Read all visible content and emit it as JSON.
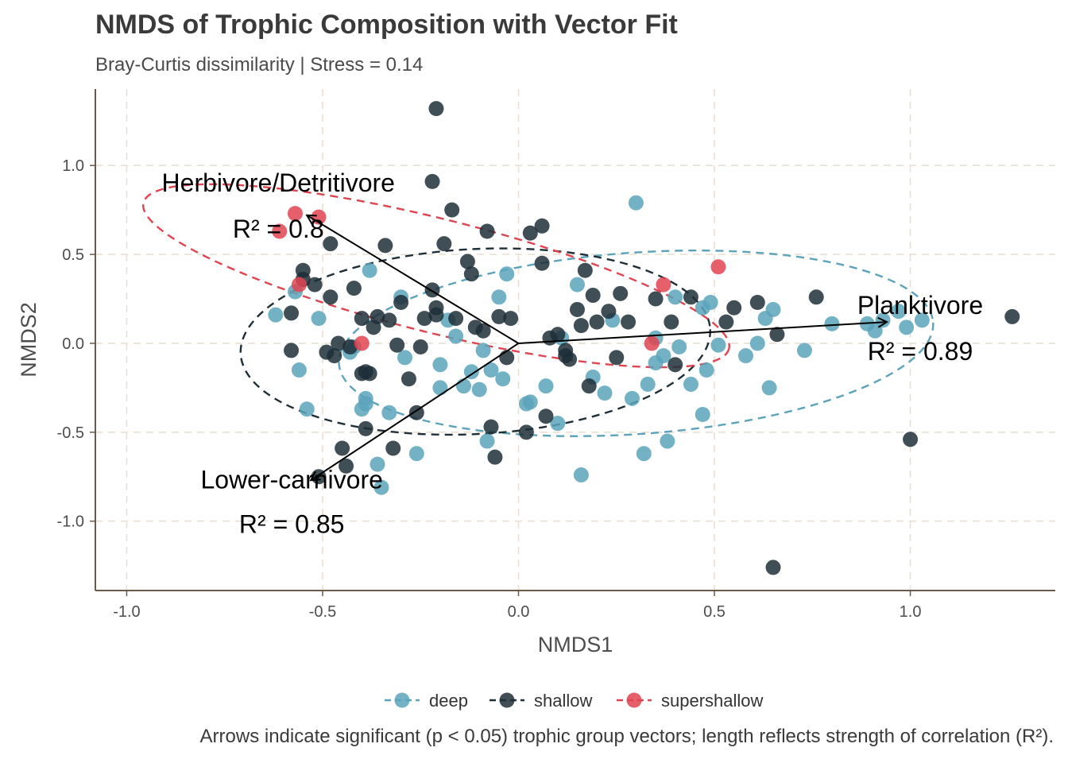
{
  "chart_data": {
    "type": "scatter",
    "title": "NMDS of Trophic Composition with Vector Fit",
    "subtitle": "Bray-Curtis dissimilarity | Stress = 0.14",
    "caption": "Arrows indicate significant (p < 0.05) trophic group vectors; length reflects strength of correlation (R²).",
    "xlabel": "NMDS1",
    "ylabel": "NMDS2",
    "xlim": [
      -1.08,
      1.37
    ],
    "ylim": [
      -1.39,
      1.43
    ],
    "xticks": [
      -1.0,
      -0.5,
      0.0,
      0.5,
      1.0
    ],
    "xtick_labels": [
      "-1.0",
      "-0.5",
      "0.0",
      "0.5",
      "1.0"
    ],
    "yticks": [
      -1.0,
      -0.5,
      0.0,
      0.5,
      1.0
    ],
    "ytick_labels": [
      "-1.0",
      "-0.5",
      "0.0",
      "0.5",
      "1.0"
    ],
    "grid": true,
    "legend_position": "bottom",
    "series": [
      {
        "name": "deep",
        "color": "#5ba3bb",
        "points": [
          [
            -0.62,
            0.16
          ],
          [
            -0.57,
            0.29
          ],
          [
            -0.56,
            -0.15
          ],
          [
            -0.54,
            -0.37
          ],
          [
            -0.51,
            0.14
          ],
          [
            -0.43,
            -0.05
          ],
          [
            -0.42,
            -0.02
          ],
          [
            -0.4,
            -0.37
          ],
          [
            -0.39,
            -0.34
          ],
          [
            -0.39,
            -0.31
          ],
          [
            -0.38,
            0.41
          ],
          [
            -0.36,
            -0.68
          ],
          [
            -0.35,
            -0.81
          ],
          [
            -0.33,
            -0.39
          ],
          [
            -0.3,
            0.26
          ],
          [
            -0.29,
            -0.08
          ],
          [
            -0.26,
            -0.62
          ],
          [
            -0.2,
            -0.25
          ],
          [
            -0.2,
            -0.12
          ],
          [
            -0.18,
            0.13
          ],
          [
            -0.16,
            0.04
          ],
          [
            -0.14,
            -0.24
          ],
          [
            -0.12,
            -0.16
          ],
          [
            -0.1,
            -0.26
          ],
          [
            -0.09,
            -0.04
          ],
          [
            -0.08,
            -0.55
          ],
          [
            -0.07,
            -0.15
          ],
          [
            -0.05,
            0.26
          ],
          [
            -0.04,
            -0.2
          ],
          [
            -0.03,
            0.39
          ],
          [
            0.02,
            -0.34
          ],
          [
            0.03,
            -0.33
          ],
          [
            0.07,
            -0.24
          ],
          [
            0.1,
            -0.45
          ],
          [
            0.11,
            0.03
          ],
          [
            0.15,
            0.33
          ],
          [
            0.16,
            -0.74
          ],
          [
            0.19,
            -0.19
          ],
          [
            0.22,
            -0.28
          ],
          [
            0.24,
            0.13
          ],
          [
            0.29,
            -0.31
          ],
          [
            0.3,
            0.79
          ],
          [
            0.32,
            -0.62
          ],
          [
            0.33,
            -0.23
          ],
          [
            0.35,
            0.03
          ],
          [
            0.35,
            -0.11
          ],
          [
            0.37,
            -0.07
          ],
          [
            0.38,
            -0.55
          ],
          [
            0.4,
            0.26
          ],
          [
            0.41,
            -0.02
          ],
          [
            0.44,
            -0.23
          ],
          [
            0.47,
            -0.4
          ],
          [
            0.47,
            0.2
          ],
          [
            0.48,
            -0.15
          ],
          [
            0.49,
            0.23
          ],
          [
            0.51,
            -0.01
          ],
          [
            0.58,
            -0.07
          ],
          [
            0.61,
            0.0
          ],
          [
            0.63,
            0.14
          ],
          [
            0.64,
            -0.25
          ],
          [
            0.65,
            0.19
          ],
          [
            0.73,
            -0.04
          ],
          [
            0.8,
            0.11
          ],
          [
            0.89,
            0.11
          ],
          [
            0.91,
            0.07
          ],
          [
            0.93,
            0.13
          ],
          [
            0.97,
            0.18
          ],
          [
            0.99,
            0.09
          ],
          [
            1.03,
            0.13
          ]
        ]
      },
      {
        "name": "shallow",
        "color": "#1f2f38",
        "points": [
          [
            -0.58,
            0.17
          ],
          [
            -0.58,
            -0.04
          ],
          [
            -0.55,
            0.41
          ],
          [
            -0.55,
            0.36
          ],
          [
            -0.52,
            0.33
          ],
          [
            -0.49,
            -0.05
          ],
          [
            -0.48,
            0.26
          ],
          [
            -0.48,
            0.56
          ],
          [
            -0.47,
            -0.07
          ],
          [
            -0.46,
            0.0
          ],
          [
            -0.45,
            -0.59
          ],
          [
            -0.44,
            -0.69
          ],
          [
            -0.43,
            -0.02
          ],
          [
            -0.42,
            0.31
          ],
          [
            -0.4,
            -0.17
          ],
          [
            -0.4,
            0.14
          ],
          [
            -0.39,
            -0.16
          ],
          [
            -0.39,
            -0.48
          ],
          [
            -0.38,
            -0.17
          ],
          [
            -0.37,
            0.09
          ],
          [
            -0.36,
            0.15
          ],
          [
            -0.34,
            0.55
          ],
          [
            -0.33,
            0.13
          ],
          [
            -0.32,
            -0.59
          ],
          [
            -0.31,
            -0.01
          ],
          [
            -0.3,
            0.23
          ],
          [
            -0.28,
            -0.2
          ],
          [
            -0.26,
            -0.39
          ],
          [
            -0.25,
            -0.02
          ],
          [
            -0.24,
            0.14
          ],
          [
            -0.22,
            0.3
          ],
          [
            -0.21,
            0.16
          ],
          [
            -0.21,
            0.2
          ],
          [
            -0.21,
            1.32
          ],
          [
            -0.19,
            0.56
          ],
          [
            -0.17,
            0.75
          ],
          [
            -0.16,
            0.14
          ],
          [
            -0.13,
            0.46
          ],
          [
            -0.12,
            0.39
          ],
          [
            -0.11,
            0.09
          ],
          [
            -0.09,
            0.07
          ],
          [
            -0.08,
            0.63
          ],
          [
            -0.07,
            -0.47
          ],
          [
            -0.06,
            -0.64
          ],
          [
            -0.05,
            0.15
          ],
          [
            -0.03,
            -0.08
          ],
          [
            -0.02,
            0.14
          ],
          [
            0.02,
            -0.5
          ],
          [
            0.03,
            0.62
          ],
          [
            0.06,
            0.45
          ],
          [
            0.06,
            0.66
          ],
          [
            0.07,
            -0.41
          ],
          [
            0.08,
            0.03
          ],
          [
            0.1,
            0.05
          ],
          [
            0.12,
            -0.07
          ],
          [
            0.12,
            -0.04
          ],
          [
            0.13,
            -0.09
          ],
          [
            0.15,
            0.19
          ],
          [
            0.16,
            0.1
          ],
          [
            0.17,
            0.41
          ],
          [
            0.18,
            -0.24
          ],
          [
            0.19,
            0.27
          ],
          [
            0.2,
            0.12
          ],
          [
            0.23,
            0.18
          ],
          [
            0.25,
            -0.08
          ],
          [
            0.26,
            0.28
          ],
          [
            0.28,
            0.12
          ],
          [
            0.35,
            0.25
          ],
          [
            0.39,
            0.12
          ],
          [
            0.4,
            -0.12
          ],
          [
            0.44,
            0.26
          ],
          [
            0.53,
            0.12
          ],
          [
            0.55,
            0.2
          ],
          [
            0.61,
            0.23
          ],
          [
            0.66,
            0.05
          ],
          [
            0.76,
            0.26
          ],
          [
            1.0,
            -0.54
          ],
          [
            1.26,
            0.15
          ],
          [
            0.65,
            -1.26
          ],
          [
            -0.22,
            0.91
          ],
          [
            -0.51,
            -0.75
          ]
        ]
      },
      {
        "name": "supershallow",
        "color": "#e04450",
        "points": [
          [
            -0.61,
            0.63
          ],
          [
            -0.57,
            0.73
          ],
          [
            -0.56,
            0.33
          ],
          [
            -0.51,
            0.71
          ],
          [
            -0.4,
            0.0
          ],
          [
            0.34,
            0.0
          ],
          [
            0.37,
            0.33
          ],
          [
            0.51,
            0.43
          ]
        ]
      }
    ],
    "ellipses": [
      {
        "series": "deep",
        "cx": 0.3,
        "cy": 0.0,
        "rx": 0.76,
        "ry": 0.51,
        "angle_deg": 4,
        "color": "#5ba3bb"
      },
      {
        "series": "shallow",
        "cx": -0.11,
        "cy": 0.01,
        "rx": 0.6,
        "ry": 0.52,
        "angle_deg": 3,
        "color": "#1f2f38"
      },
      {
        "series": "supershallow",
        "cx": -0.21,
        "cy": 0.38,
        "rx": 0.77,
        "ry": 0.32,
        "angle_deg": -14,
        "color": "#e04450"
      }
    ],
    "vectors": [
      {
        "name": "Herbivore/Detritivore",
        "r2": "R² = 0.8",
        "x": -0.54,
        "y": 0.72
      },
      {
        "name": "Planktivore",
        "r2": "R² = 0.89",
        "x": 0.94,
        "y": 0.12
      },
      {
        "name": "Lower-carnivore",
        "r2": "R² = 0.85",
        "x": -0.53,
        "y": -0.77
      }
    ]
  }
}
